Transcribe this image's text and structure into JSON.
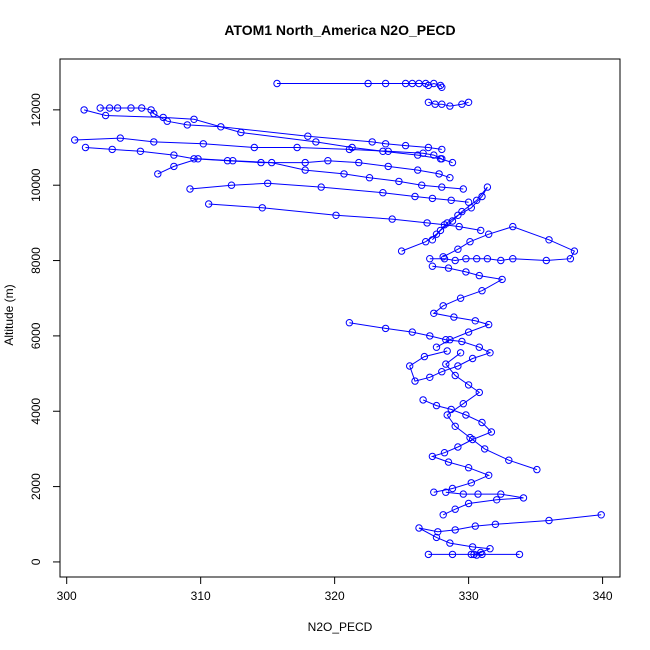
{
  "chart_data": {
    "type": "line",
    "title": "ATOM1 North_America N2O_PECD",
    "xlabel": "N2O_PECD",
    "ylabel": "Altitude (m)",
    "xlim": [
      299.5,
      341.3
    ],
    "ylim": [
      -400,
      13350
    ],
    "xticks": [
      300,
      310,
      320,
      330,
      340
    ],
    "yticks": [
      0,
      2000,
      4000,
      6000,
      8000,
      10000,
      12000
    ],
    "grid": false,
    "legend": "none",
    "color": "#0000ff",
    "marker": "open-circle",
    "series": [
      {
        "values": [
          [
            315.7,
            12700
          ],
          [
            322.5,
            12700
          ],
          [
            323.8,
            12700
          ],
          [
            325.3,
            12700
          ],
          [
            325.8,
            12700
          ],
          [
            326.3,
            12700
          ],
          [
            326.8,
            12700
          ],
          [
            327.0,
            12650
          ],
          [
            327.4,
            12700
          ],
          [
            327.9,
            12650
          ],
          [
            328.0,
            12600
          ]
        ]
      },
      {
        "values": [
          [
            327.0,
            12200
          ],
          [
            327.5,
            12150
          ],
          [
            328.0,
            12150
          ],
          [
            328.6,
            12100
          ],
          [
            329.5,
            12150
          ],
          [
            330.0,
            12200
          ]
        ]
      },
      {
        "values": [
          [
            302.5,
            12050
          ],
          [
            303.2,
            12050
          ],
          [
            303.8,
            12050
          ],
          [
            304.8,
            12050
          ],
          [
            305.6,
            12050
          ],
          [
            306.3,
            12000
          ],
          [
            306.5,
            11900
          ],
          [
            307.5,
            11700
          ],
          [
            309.0,
            11600
          ],
          [
            311.5,
            11550
          ],
          [
            318.0,
            11300
          ],
          [
            322.8,
            11150
          ],
          [
            323.8,
            11100
          ],
          [
            325.3,
            11050
          ],
          [
            327.0,
            11000
          ],
          [
            328.0,
            10950
          ]
        ]
      },
      {
        "values": [
          [
            301.3,
            12000
          ],
          [
            302.9,
            11850
          ],
          [
            307.2,
            11800
          ],
          [
            309.5,
            11750
          ],
          [
            313.0,
            11400
          ],
          [
            318.6,
            11150
          ],
          [
            321.3,
            11000
          ],
          [
            323.6,
            10900
          ],
          [
            326.2,
            10800
          ],
          [
            327.9,
            10700
          ],
          [
            328.8,
            10600
          ]
        ]
      },
      {
        "values": [
          [
            300.6,
            11200
          ],
          [
            304.0,
            11250
          ],
          [
            306.5,
            11150
          ],
          [
            310.2,
            11100
          ],
          [
            314.0,
            11000
          ],
          [
            317.2,
            11000
          ],
          [
            321.1,
            10950
          ],
          [
            324.0,
            10900
          ],
          [
            326.6,
            10850
          ],
          [
            327.4,
            10800
          ],
          [
            328.0,
            10700
          ]
        ]
      },
      {
        "values": [
          [
            301.4,
            11000
          ],
          [
            303.4,
            10950
          ],
          [
            305.5,
            10900
          ],
          [
            308.0,
            10800
          ],
          [
            309.5,
            10700
          ],
          [
            312.0,
            10650
          ],
          [
            314.5,
            10600
          ],
          [
            317.8,
            10600
          ],
          [
            319.5,
            10650
          ],
          [
            321.8,
            10600
          ],
          [
            324.0,
            10500
          ],
          [
            326.2,
            10400
          ],
          [
            327.8,
            10300
          ],
          [
            328.6,
            10200
          ]
        ]
      },
      {
        "values": [
          [
            306.8,
            10300
          ],
          [
            308.0,
            10500
          ],
          [
            309.8,
            10700
          ],
          [
            312.4,
            10650
          ],
          [
            315.3,
            10600
          ],
          [
            317.8,
            10400
          ],
          [
            320.7,
            10300
          ],
          [
            322.6,
            10200
          ],
          [
            324.8,
            10100
          ],
          [
            326.5,
            10000
          ],
          [
            328.0,
            9950
          ],
          [
            329.6,
            9900
          ]
        ]
      },
      {
        "values": [
          [
            309.2,
            9900
          ],
          [
            312.3,
            10000
          ],
          [
            315.0,
            10050
          ],
          [
            319.0,
            9950
          ],
          [
            323.6,
            9800
          ],
          [
            326.0,
            9700
          ],
          [
            327.3,
            9650
          ],
          [
            328.7,
            9600
          ],
          [
            330.0,
            9550
          ]
        ]
      },
      {
        "values": [
          [
            310.6,
            9500
          ],
          [
            314.6,
            9400
          ],
          [
            320.1,
            9200
          ],
          [
            324.3,
            9100
          ],
          [
            326.9,
            9000
          ],
          [
            328.2,
            8950
          ],
          [
            329.3,
            8900
          ],
          [
            330.9,
            8800
          ]
        ]
      },
      {
        "values": [
          [
            325.0,
            8250
          ],
          [
            326.8,
            8500
          ],
          [
            327.6,
            8700
          ],
          [
            328.4,
            9000
          ],
          [
            329.2,
            9200
          ],
          [
            330.2,
            9400
          ],
          [
            331.0,
            9700
          ],
          [
            331.4,
            9950
          ],
          [
            330.6,
            9600
          ],
          [
            329.5,
            9300
          ],
          [
            328.8,
            9050
          ],
          [
            327.9,
            8800
          ],
          [
            327.3,
            8550
          ]
        ]
      },
      {
        "values": [
          [
            327.1,
            8050
          ],
          [
            328.2,
            8050
          ],
          [
            329.0,
            8000
          ],
          [
            329.8,
            8050
          ],
          [
            330.6,
            8050
          ],
          [
            331.4,
            8050
          ],
          [
            332.4,
            8000
          ],
          [
            333.3,
            8050
          ],
          [
            335.8,
            8000
          ],
          [
            337.6,
            8050
          ],
          [
            337.9,
            8250
          ],
          [
            336.0,
            8550
          ],
          [
            333.3,
            8900
          ],
          [
            331.5,
            8700
          ],
          [
            330.1,
            8500
          ],
          [
            329.2,
            8300
          ],
          [
            328.1,
            8100
          ]
        ]
      },
      {
        "values": [
          [
            327.3,
            7850
          ],
          [
            328.5,
            7800
          ],
          [
            329.8,
            7700
          ],
          [
            330.8,
            7600
          ],
          [
            332.5,
            7500
          ],
          [
            331.0,
            7200
          ],
          [
            329.4,
            7000
          ],
          [
            328.1,
            6800
          ],
          [
            327.4,
            6600
          ],
          [
            328.9,
            6500
          ],
          [
            330.5,
            6400
          ],
          [
            331.5,
            6300
          ],
          [
            330.0,
            6100
          ],
          [
            328.6,
            5900
          ],
          [
            327.6,
            5700
          ]
        ]
      },
      {
        "values": [
          [
            321.1,
            6350
          ],
          [
            323.8,
            6200
          ],
          [
            325.8,
            6100
          ],
          [
            327.1,
            6000
          ],
          [
            328.3,
            5900
          ],
          [
            329.5,
            5850
          ],
          [
            330.8,
            5700
          ],
          [
            331.6,
            5550
          ],
          [
            330.3,
            5400
          ],
          [
            329.2,
            5200
          ],
          [
            328.0,
            5050
          ],
          [
            327.1,
            4900
          ],
          [
            326.0,
            4800
          ],
          [
            325.6,
            5200
          ],
          [
            326.7,
            5450
          ],
          [
            328.4,
            5600
          ]
        ]
      },
      {
        "values": [
          [
            326.6,
            4300
          ],
          [
            327.6,
            4150
          ],
          [
            328.7,
            4050
          ],
          [
            329.8,
            3900
          ],
          [
            331.0,
            3700
          ],
          [
            331.7,
            3450
          ],
          [
            330.3,
            3250
          ],
          [
            329.2,
            3050
          ],
          [
            328.2,
            2900
          ],
          [
            327.3,
            2800
          ],
          [
            328.5,
            2650
          ],
          [
            330.0,
            2500
          ],
          [
            331.5,
            2300
          ],
          [
            330.2,
            2100
          ],
          [
            328.8,
            1950
          ],
          [
            327.4,
            1850
          ]
        ]
      },
      {
        "values": [
          [
            328.3,
            1850
          ],
          [
            329.6,
            1800
          ],
          [
            330.7,
            1800
          ],
          [
            332.4,
            1800
          ],
          [
            334.1,
            1700
          ],
          [
            332.1,
            1650
          ],
          [
            330.0,
            1550
          ],
          [
            329.0,
            1400
          ],
          [
            328.1,
            1250
          ]
        ]
      },
      {
        "values": [
          [
            335.1,
            2450
          ],
          [
            333.0,
            2700
          ],
          [
            331.2,
            3000
          ],
          [
            330.1,
            3300
          ],
          [
            329.0,
            3600
          ],
          [
            328.4,
            3900
          ],
          [
            329.6,
            4200
          ],
          [
            330.8,
            4500
          ],
          [
            330.0,
            4700
          ],
          [
            329.0,
            4950
          ],
          [
            328.3,
            5250
          ],
          [
            329.4,
            5550
          ]
        ]
      },
      {
        "values": [
          [
            339.9,
            1250
          ],
          [
            336.0,
            1100
          ],
          [
            332.0,
            1000
          ],
          [
            330.5,
            950
          ],
          [
            329.0,
            850
          ],
          [
            327.7,
            800
          ],
          [
            326.3,
            900
          ],
          [
            327.6,
            650
          ],
          [
            328.6,
            500
          ],
          [
            330.3,
            400
          ],
          [
            331.6,
            350
          ],
          [
            330.9,
            250
          ],
          [
            330.4,
            200
          ],
          [
            333.8,
            200
          ],
          [
            331.0,
            200
          ],
          [
            330.6,
            180
          ],
          [
            330.2,
            200
          ],
          [
            328.8,
            200
          ],
          [
            327.0,
            200
          ]
        ]
      }
    ]
  }
}
